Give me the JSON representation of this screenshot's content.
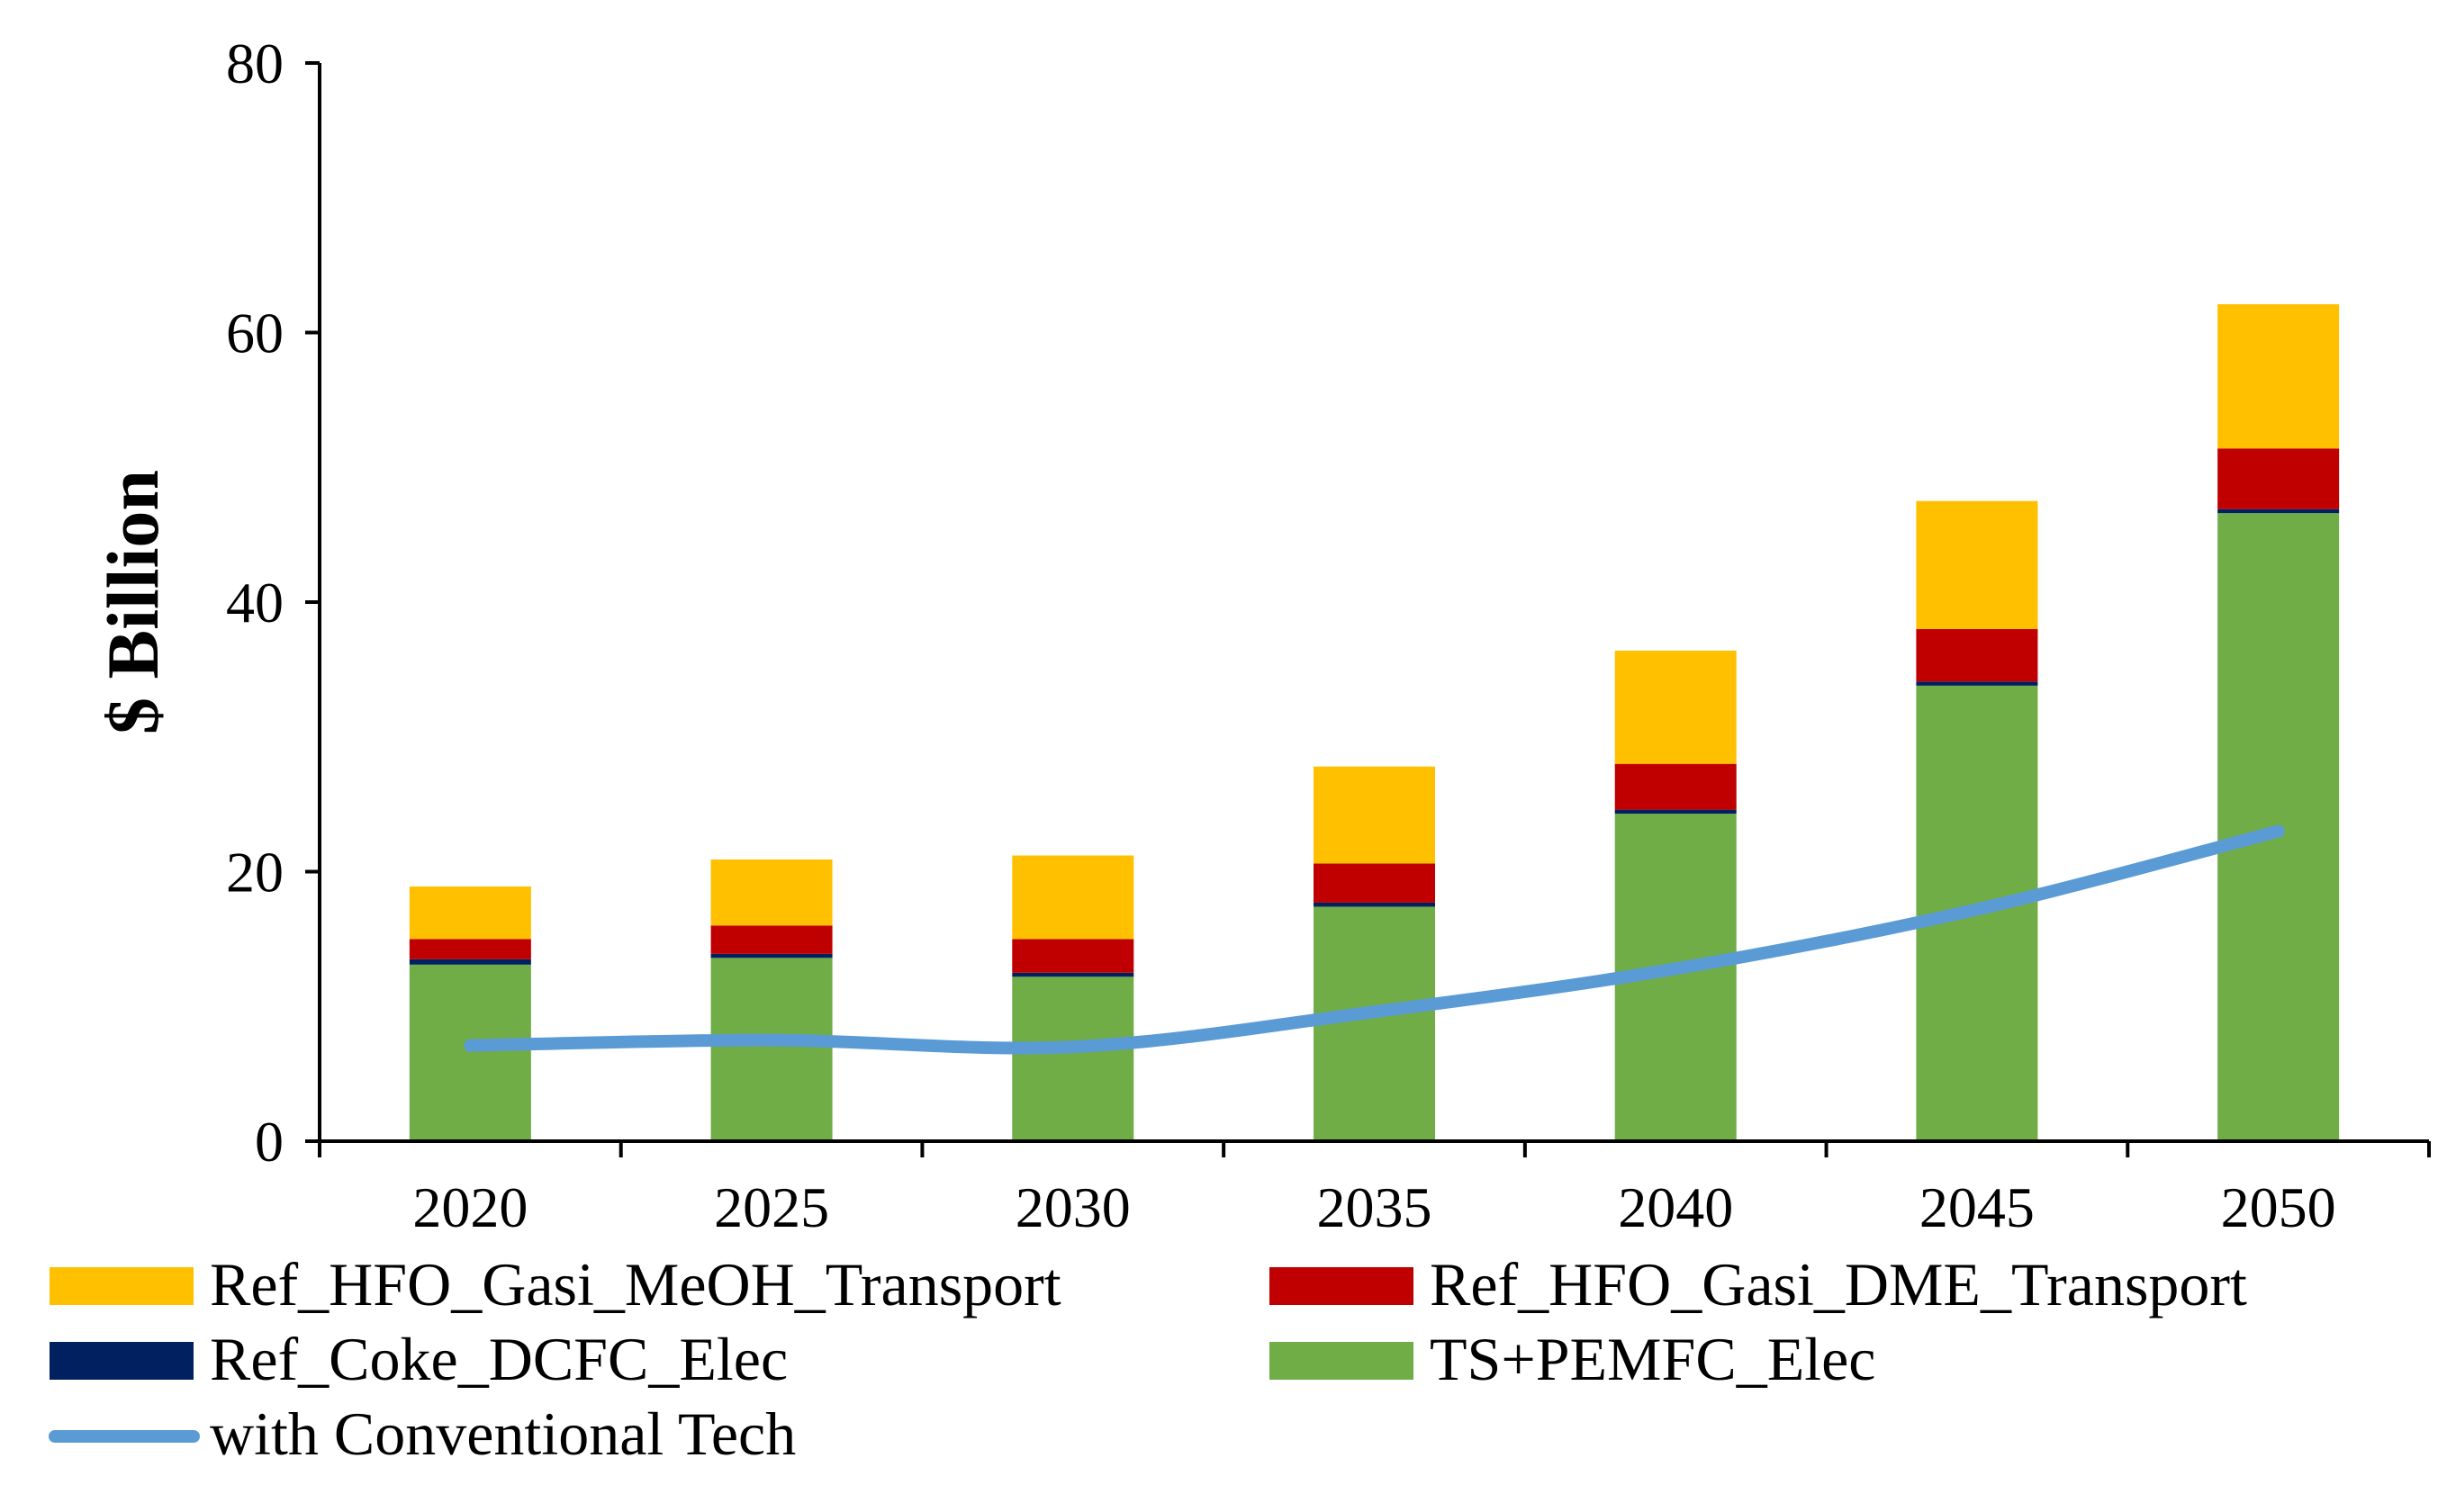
{
  "chart_data": {
    "type": "bar",
    "stacked": true,
    "title": "",
    "xlabel": "",
    "ylabel": "$ Billion",
    "ylim": [
      0,
      80
    ],
    "yticks": [
      0,
      20,
      40,
      60,
      80
    ],
    "grid": false,
    "legend_position": "bottom",
    "categories": [
      "2020",
      "2025",
      "2030",
      "2035",
      "2040",
      "2045",
      "2050"
    ],
    "series": [
      {
        "name": "TS+PEMFC_Elec",
        "kind": "bar",
        "color": "#70AD47",
        "values": [
          13.1,
          13.6,
          12.2,
          17.4,
          24.3,
          33.8,
          46.6
        ]
      },
      {
        "name": "Ref_Coke_DCFC_Elec",
        "kind": "bar",
        "color": "#002060",
        "values": [
          0.4,
          0.3,
          0.3,
          0.3,
          0.3,
          0.3,
          0.3
        ]
      },
      {
        "name": "Ref_HFO_Gasi_DME_Transport",
        "kind": "bar",
        "color": "#C00000",
        "values": [
          1.5,
          2.1,
          2.5,
          2.9,
          3.4,
          3.9,
          4.5
        ]
      },
      {
        "name": "Ref_HFO_Gasi_MeOH_Transport",
        "kind": "bar",
        "color": "#FFC000",
        "values": [
          3.9,
          4.9,
          6.2,
          7.2,
          8.4,
          9.5,
          10.7
        ]
      },
      {
        "name": "with Conventional Tech",
        "kind": "line",
        "color": "#5B9BD5",
        "values": [
          7.1,
          7.5,
          7.0,
          9.6,
          12.8,
          17.2,
          23.0
        ]
      }
    ],
    "legend_order": [
      "Ref_HFO_Gasi_MeOH_Transport",
      "Ref_HFO_Gasi_DME_Transport",
      "Ref_Coke_DCFC_Elec",
      "TS+PEMFC_Elec",
      "with Conventional Tech"
    ]
  }
}
